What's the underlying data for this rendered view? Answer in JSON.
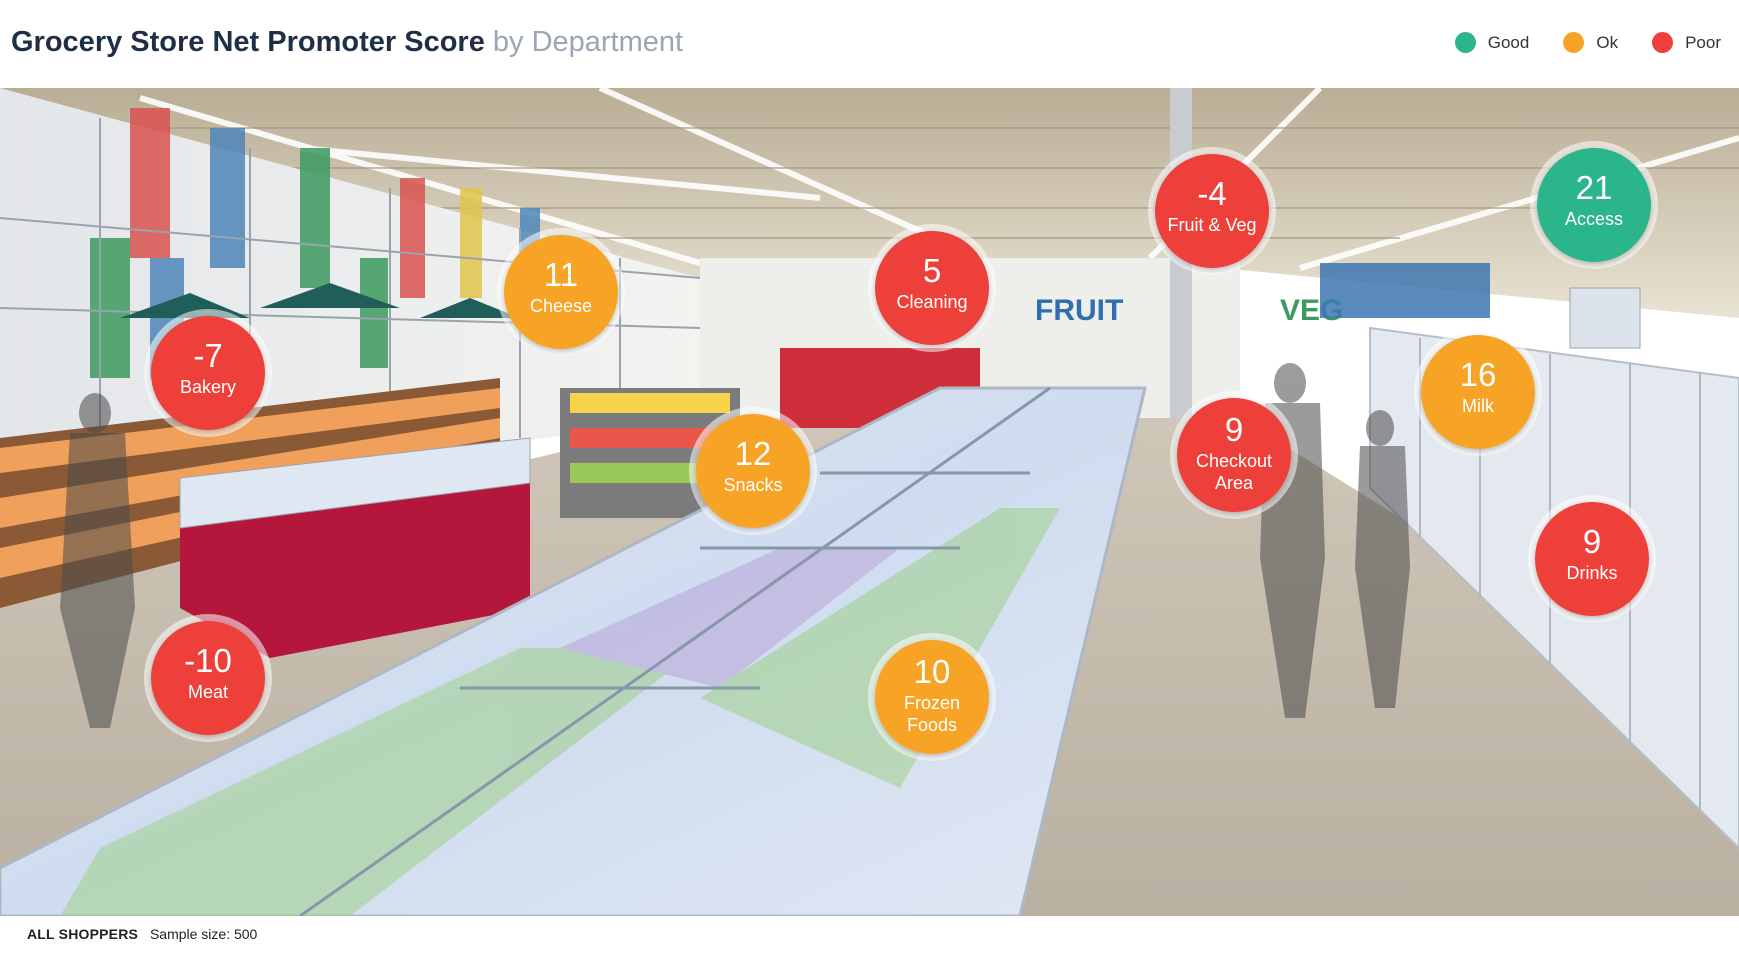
{
  "header": {
    "title": "Grocery Store Net Promoter Score",
    "subtitle": "by Department"
  },
  "legend": [
    {
      "label": "Good",
      "color": "#2bb58b"
    },
    {
      "label": "Ok",
      "color": "#f7a325"
    },
    {
      "label": "Poor",
      "color": "#ee3f3a"
    }
  ],
  "footer": {
    "segment": "ALL SHOPPERS",
    "sample": "Sample size: 500"
  },
  "chart_data": {
    "type": "bubble-map",
    "title": "Grocery Store Net Promoter Score",
    "subtitle": "by Department",
    "series": [
      {
        "name": "Bakery",
        "value": -7,
        "rating": "Poor"
      },
      {
        "name": "Cheese",
        "value": 11,
        "rating": "Ok"
      },
      {
        "name": "Cleaning",
        "value": 5,
        "rating": "Poor"
      },
      {
        "name": "Fruit & Veg",
        "value": -4,
        "rating": "Poor"
      },
      {
        "name": "Access",
        "value": 21,
        "rating": "Good"
      },
      {
        "name": "Snacks",
        "value": 12,
        "rating": "Ok"
      },
      {
        "name": "Checkout Area",
        "value": 9,
        "rating": "Poor"
      },
      {
        "name": "Milk",
        "value": 16,
        "rating": "Ok"
      },
      {
        "name": "Meat",
        "value": -10,
        "rating": "Poor"
      },
      {
        "name": "Drinks",
        "value": 9,
        "rating": "Poor"
      },
      {
        "name": "Frozen Foods",
        "value": 10,
        "rating": "Ok"
      }
    ],
    "rating_colors": {
      "Good": "#2bb58b",
      "Ok": "#f7a325",
      "Poor": "#ee3f3a"
    }
  }
}
